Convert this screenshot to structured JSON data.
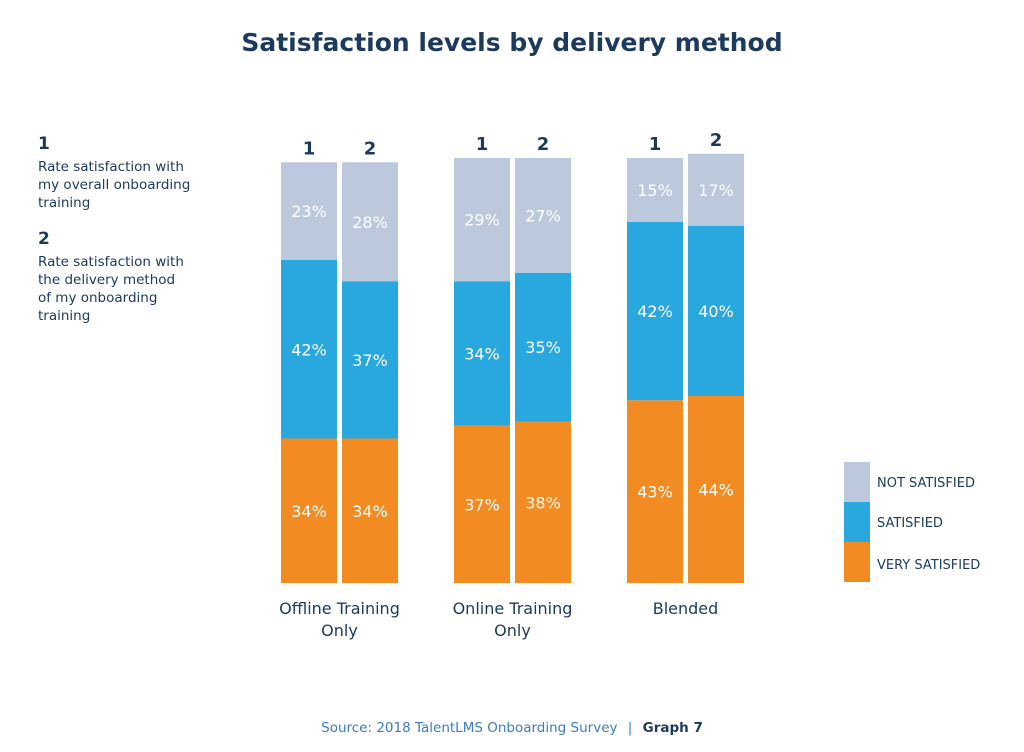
{
  "title": "Satisfaction levels by delivery method",
  "notes": [
    {
      "num": "1",
      "text": "Rate satisfaction with my overall onboarding training"
    },
    {
      "num": "2",
      "text": "Rate satisfaction with the delivery method of my onboarding training"
    }
  ],
  "source": "Source: 2018 TalentLMS Onboarding Survey",
  "separator": "|",
  "graph_label": "Graph 7",
  "chart_data": {
    "type": "bar",
    "stacked": true,
    "title": "Satisfaction levels by delivery method",
    "groups": [
      "Offline Training Only",
      "Online Training Only",
      "Blended"
    ],
    "bar_labels": [
      "1",
      "2"
    ],
    "legend_position": "right",
    "series": [
      {
        "name": "VERY SATISFIED",
        "color": "#f28c22",
        "values": [
          [
            34,
            34
          ],
          [
            37,
            38
          ],
          [
            43,
            44
          ]
        ]
      },
      {
        "name": "SATISFIED",
        "color": "#29a8e0",
        "values": [
          [
            42,
            37
          ],
          [
            34,
            35
          ],
          [
            42,
            40
          ]
        ]
      },
      {
        "name": "NOT SATISFIED",
        "color": "#bcc8dc",
        "values": [
          [
            23,
            28
          ],
          [
            29,
            27
          ],
          [
            15,
            17
          ]
        ]
      }
    ],
    "value_suffix": "%",
    "grid": false
  }
}
